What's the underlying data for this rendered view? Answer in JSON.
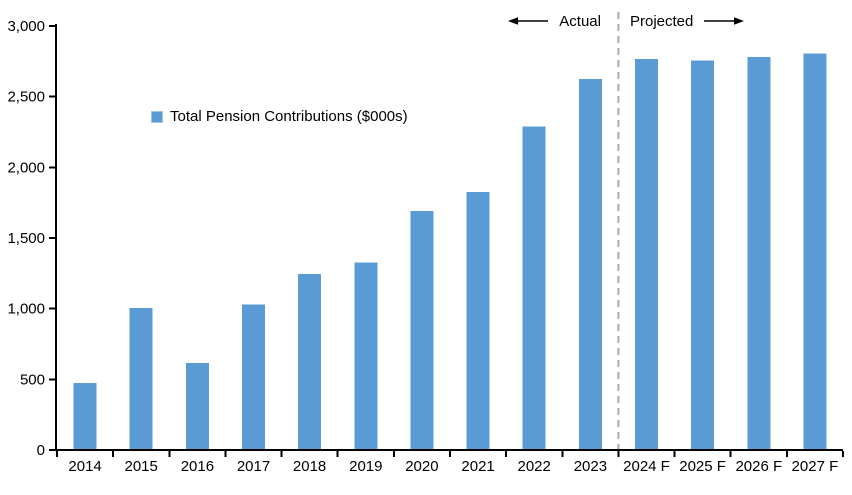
{
  "chart_data": {
    "type": "bar",
    "title": "",
    "xlabel": "",
    "ylabel": "",
    "grid": false,
    "legend_position": "upper-left-inside",
    "categories": [
      "2014",
      "2015",
      "2016",
      "2017",
      "2018",
      "2019",
      "2020",
      "2021",
      "2022",
      "2023",
      "2024 F",
      "2025 F",
      "2026 F",
      "2027 F"
    ],
    "values": [
      475,
      1005,
      615,
      1030,
      1245,
      1325,
      1690,
      1825,
      2290,
      2625,
      2765,
      2755,
      2780,
      2805
    ],
    "series_name": "Total Pension Contributions ($000s)",
    "ylim": [
      0,
      3000
    ],
    "yticks": [
      0,
      500,
      1000,
      1500,
      2000,
      2500,
      3000
    ],
    "ytick_labels": [
      "0",
      "500",
      "1,000",
      "1,500",
      "2,000",
      "2,500",
      "3,000"
    ],
    "annotations": {
      "actual_label": "Actual",
      "projected_label": "Projected",
      "divider_after_category": "2023",
      "divider_after_index": 9
    }
  },
  "legend": {
    "label": "Total Pension Contributions ($000s)",
    "swatch_color": "#5B9BD5",
    "swatch_border_color": "#9DC3E6"
  },
  "colors": {
    "bar": "#5B9BD5",
    "divider": "#A6A6A6",
    "axis": "#000000",
    "text": "#000000",
    "background": "#FFFFFF"
  }
}
